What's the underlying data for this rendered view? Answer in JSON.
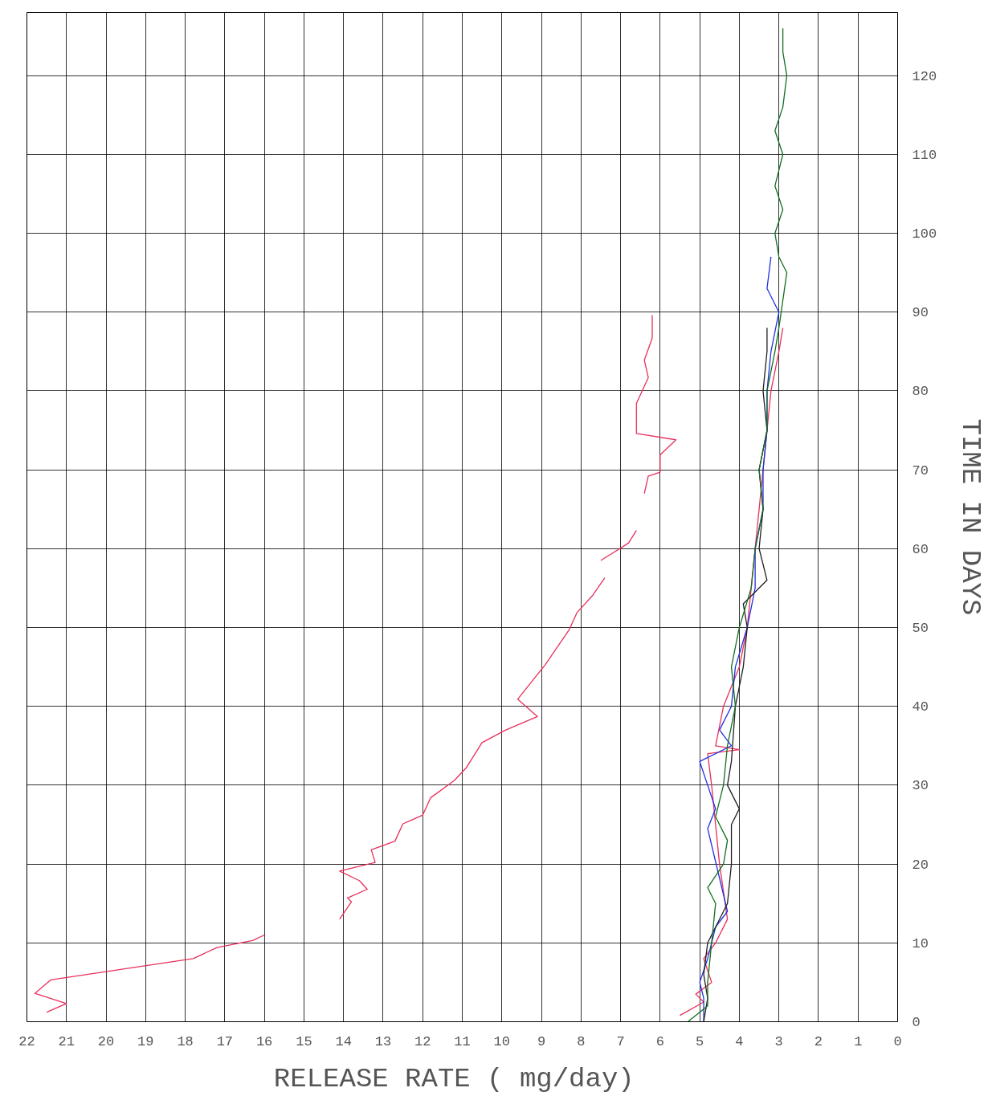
{
  "chart_data": {
    "type": "line",
    "xlabel": "RELEASE RATE  ( mg/day)",
    "ylabel": "TIME IN DAYS",
    "xlim": [
      22,
      0
    ],
    "ylim": [
      0,
      128
    ],
    "xticks": [
      0,
      1,
      2,
      3,
      4,
      5,
      6,
      7,
      8,
      9,
      10,
      11,
      12,
      13,
      14,
      15,
      16,
      17,
      18,
      19,
      20,
      21,
      22
    ],
    "yticks": [
      0,
      10,
      20,
      30,
      40,
      50,
      60,
      70,
      80,
      90,
      100,
      110,
      120
    ],
    "grid": true,
    "marker": "none",
    "line_style": "solid",
    "series": [
      {
        "color": "#e8305a",
        "values": [
          1.2,
          2.3,
          3.6,
          5.3,
          8.0,
          9.4,
          10.3,
          11.0,
          null,
          13.0,
          15.2,
          15.7,
          16.8,
          17.9,
          19.1,
          20.2,
          21.8,
          22.9,
          25.1,
          26.2,
          28.4,
          30.6,
          32.2,
          35.4,
          37.0,
          38.7,
          40.9,
          45.3,
          49.7,
          51.9,
          54.1,
          56.3,
          null,
          58.5,
          60.7,
          62.3,
          null,
          67.0,
          69.2,
          69.7,
          71.9,
          73.8,
          74.6,
          78.4,
          81.7,
          83.9,
          86.7,
          89.6
        ],
        "x": [
          21.5,
          21.0,
          21.8,
          21.4,
          17.8,
          17.2,
          16.3,
          16.0,
          null,
          14.1,
          13.8,
          13.9,
          13.4,
          13.6,
          14.1,
          13.2,
          13.3,
          12.7,
          12.5,
          12.0,
          11.8,
          11.2,
          10.9,
          10.5,
          9.9,
          9.1,
          9.6,
          8.9,
          8.3,
          8.1,
          7.7,
          7.4,
          null,
          7.5,
          6.8,
          6.6,
          null,
          6.4,
          6.3,
          6.0,
          6.0,
          5.6,
          6.6,
          6.6,
          6.3,
          6.4,
          6.2,
          6.2
        ]
      },
      {
        "color": "#e8305a",
        "values": [
          0.8,
          2.5,
          3.5,
          5,
          8,
          10,
          13,
          20,
          30,
          34,
          34.5,
          35,
          40,
          45,
          50,
          60,
          70,
          80,
          85,
          88
        ],
        "x": [
          5.5,
          4.9,
          5.1,
          4.7,
          4.9,
          4.6,
          4.3,
          4.5,
          4.7,
          4.8,
          4.0,
          4.6,
          4.4,
          4.0,
          3.8,
          3.6,
          3.4,
          3.2,
          3.0,
          2.9
        ]
      },
      {
        "color": "#2030e0",
        "values": [
          0,
          3,
          5,
          8,
          12,
          14,
          24.5,
          27,
          30,
          33,
          35,
          37,
          40,
          45,
          50,
          55,
          60,
          65,
          70,
          75,
          80,
          85,
          90,
          93,
          97
        ],
        "x": [
          4.9,
          4.9,
          5.0,
          4.8,
          4.6,
          4.3,
          4.8,
          4.6,
          4.8,
          5.0,
          4.2,
          4.5,
          4.2,
          4.1,
          3.8,
          3.6,
          3.6,
          3.4,
          3.4,
          3.3,
          3.3,
          3.2,
          3.0,
          3.3,
          3.2
        ]
      },
      {
        "color": "#202020",
        "values": [
          0,
          3,
          6,
          10,
          15,
          20,
          25,
          27,
          30,
          33,
          40,
          45,
          50,
          53,
          56,
          60,
          65,
          70,
          75,
          80,
          85,
          88
        ],
        "x": [
          4.9,
          4.8,
          4.9,
          4.8,
          4.3,
          4.2,
          4.2,
          4.0,
          4.3,
          4.2,
          4.1,
          3.9,
          3.8,
          3.9,
          3.3,
          3.5,
          3.4,
          3.5,
          3.3,
          3.4,
          3.3,
          3.3
        ]
      },
      {
        "color": "#107020",
        "values": [
          0,
          2,
          5,
          10,
          15,
          17,
          20,
          23,
          26,
          30,
          35,
          40,
          45,
          50,
          55,
          60,
          65,
          70,
          75,
          80,
          85,
          88,
          95,
          97,
          100,
          103,
          106,
          110,
          113,
          116,
          120,
          123,
          126
        ],
        "x": [
          5.3,
          4.8,
          4.8,
          4.7,
          4.6,
          4.8,
          4.4,
          4.3,
          4.6,
          4.4,
          4.3,
          4.1,
          4.2,
          4.0,
          3.7,
          3.6,
          3.4,
          3.5,
          3.3,
          3.3,
          3.1,
          3.0,
          2.8,
          3.0,
          3.1,
          2.9,
          3.1,
          2.9,
          3.1,
          2.9,
          2.8,
          2.9,
          2.9
        ]
      }
    ]
  }
}
